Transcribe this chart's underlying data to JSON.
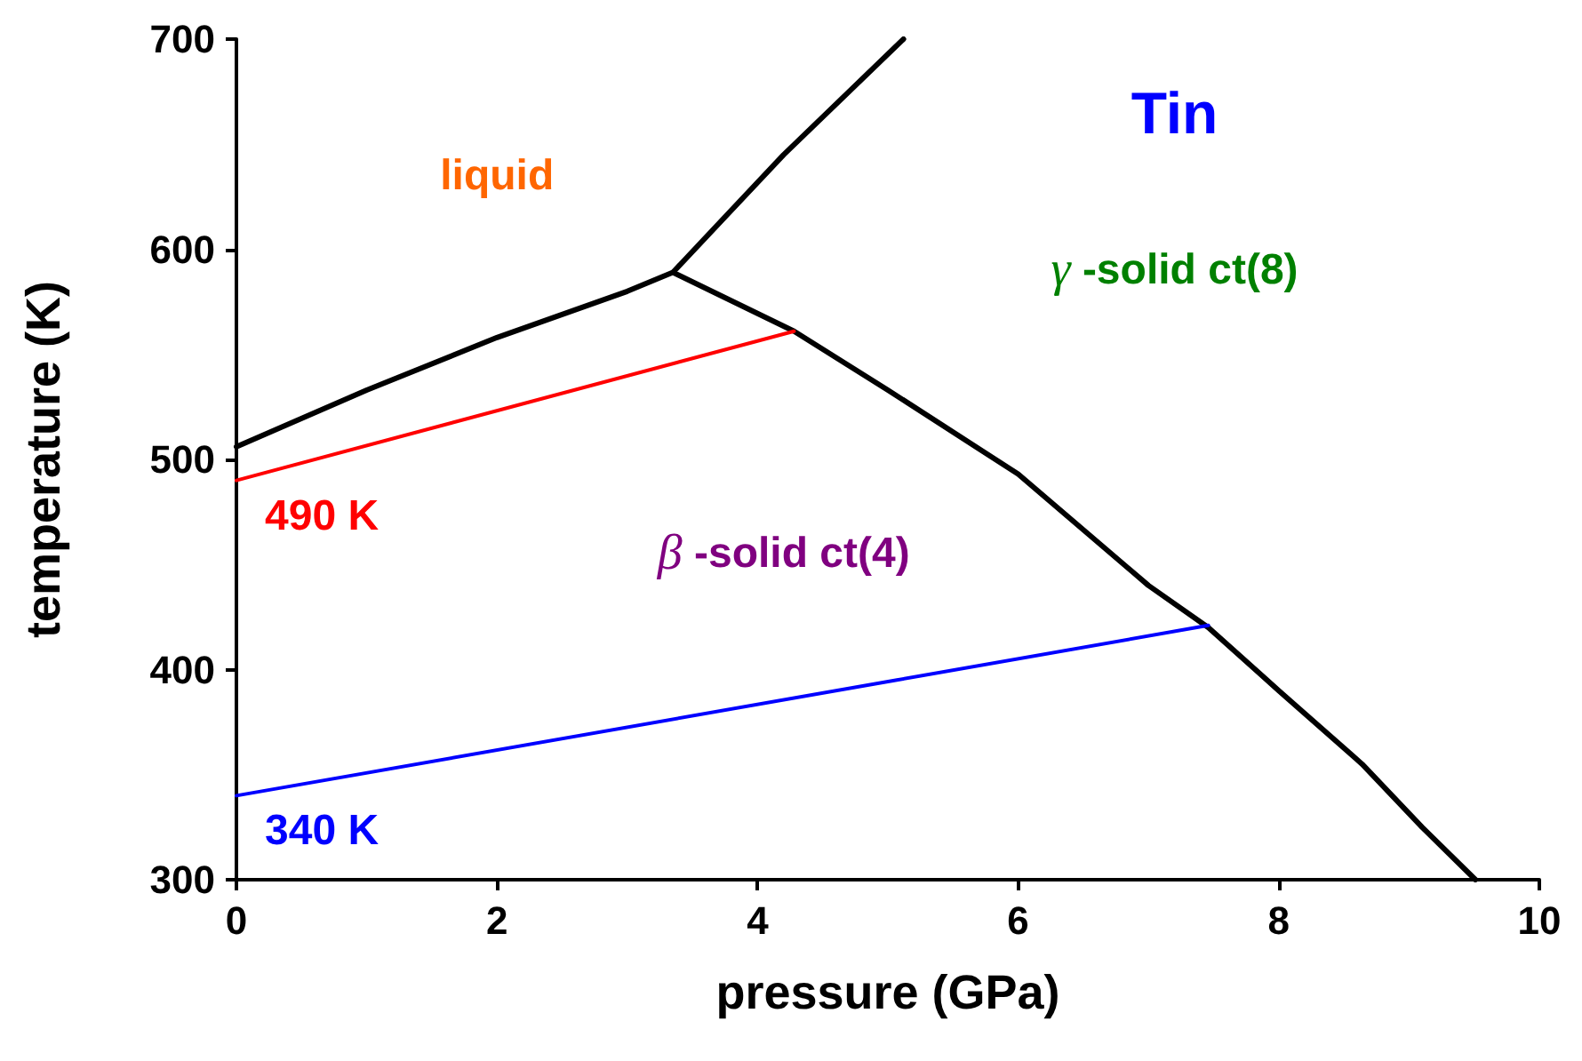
{
  "chart_data": {
    "type": "line",
    "title": "Tin",
    "xlabel": "pressure (GPa)",
    "ylabel": "temperature (K)",
    "xlim": [
      0,
      10
    ],
    "xticks": [
      0,
      2,
      4,
      6,
      8,
      10
    ],
    "ylim": [
      300,
      700
    ],
    "yticks": [
      300,
      400,
      500,
      600,
      700
    ],
    "marker": "none",
    "line_style": "solid",
    "series": [
      {
        "color": "#000000",
        "x": [
          0,
          1,
          2,
          3,
          3.35,
          4.2,
          5.12
        ],
        "values": [
          506,
          533,
          558,
          580,
          589,
          645,
          700
        ]
      },
      {
        "color": "#000000",
        "x": [
          3.35,
          4.28,
          5,
          6,
          7,
          7.46,
          8,
          8.64,
          9.1,
          9.51
        ],
        "values": [
          589,
          561,
          533,
          493,
          440,
          420,
          390,
          355,
          325,
          300
        ]
      },
      {
        "color": "#ff0000",
        "x": [
          0,
          4.28
        ],
        "values": [
          490,
          561
        ]
      },
      {
        "color": "#0000ff",
        "x": [
          0,
          7.46
        ],
        "values": [
          340,
          421
        ]
      }
    ],
    "annotations": [
      "liquid",
      "γ -solid ct(8)",
      "β -solid ct(4)",
      {
        "text": "490 K",
        "x": 0,
        "y": 490
      },
      {
        "text": "340 K",
        "x": 0,
        "y": 340
      }
    ]
  }
}
